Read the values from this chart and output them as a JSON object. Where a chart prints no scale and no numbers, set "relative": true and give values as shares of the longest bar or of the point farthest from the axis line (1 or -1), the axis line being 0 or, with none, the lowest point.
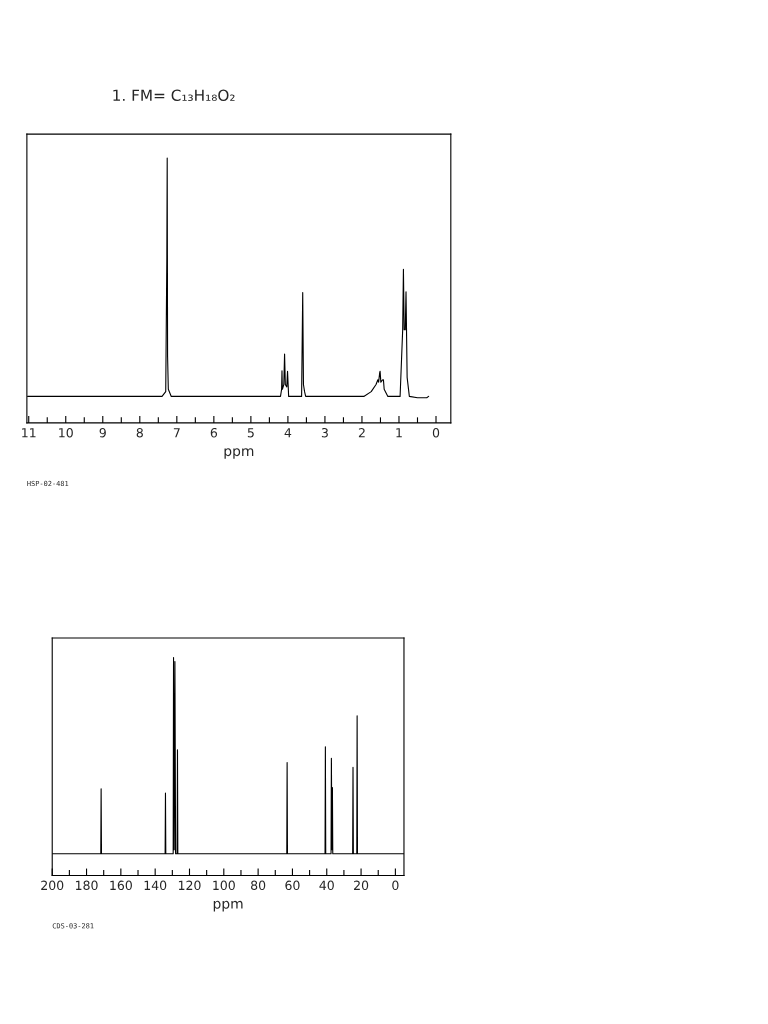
{
  "chart_data": [
    {
      "type": "line",
      "title": "1. FM= C₁₃H₁₈O₂",
      "xlabel": "ppm",
      "annotations": [
        "HSP-02-481"
      ],
      "relative": true,
      "tick_labels": "x",
      "grid": false,
      "legend": false,
      "marker": "none",
      "line_style": "solid",
      "xlim": [
        11.05,
        -0.4
      ],
      "xticks": [
        11,
        {
          "value": 10.5,
          "label": null
        },
        10,
        {
          "value": 9.5,
          "label": null
        },
        9,
        {
          "value": 8.5,
          "label": null
        },
        8,
        {
          "value": 7.5,
          "label": null
        },
        7,
        {
          "value": 6.5,
          "label": null
        },
        6,
        {
          "value": 5.5,
          "label": null
        },
        5,
        {
          "value": 4.5,
          "label": null
        },
        4,
        {
          "value": 3.5,
          "label": null
        },
        3,
        {
          "value": 2.5,
          "label": null
        },
        2,
        {
          "value": 1.5,
          "label": null
        },
        1,
        {
          "value": 0.5,
          "label": null
        },
        0
      ],
      "series": [
        {
          "color": "#000000",
          "x": [
            11.03,
            7.4,
            7.3,
            7.27,
            7.26,
            7.25,
            7.23,
            7.15,
            4.2,
            4.17,
            4.16,
            4.15,
            4.11,
            4.09,
            4.07,
            4.03,
            4.01,
            3.98,
            3.63,
            3.6,
            3.58,
            3.55,
            3.52,
            1.95,
            1.75,
            1.62,
            1.57,
            1.55,
            1.52,
            1.51,
            1.49,
            1.44,
            1.42,
            1.4,
            1.3,
            0.97,
            0.9,
            0.88,
            0.86,
            0.83,
            0.81,
            0.78,
            0.72,
            0.5,
            0.25,
            0.2
          ],
          "values": [
            0.1,
            0.1,
            0.118,
            0.622,
            1.0,
            0.253,
            0.127,
            0.1,
            0.1,
            0.127,
            0.197,
            0.127,
            0.145,
            0.26,
            0.145,
            0.136,
            0.195,
            0.1,
            0.1,
            0.492,
            0.145,
            0.118,
            0.1,
            0.1,
            0.118,
            0.145,
            0.163,
            0.154,
            0.19,
            0.195,
            0.154,
            0.163,
            0.163,
            0.127,
            0.1,
            0.1,
            0.352,
            0.58,
            0.352,
            0.352,
            0.495,
            0.172,
            0.1,
            0.095,
            0.095,
            0.1
          ]
        }
      ]
    },
    {
      "type": "line",
      "xlabel": "ppm",
      "annotations": [
        "CDS-03-281"
      ],
      "relative": true,
      "tick_labels": "x",
      "grid": false,
      "legend": false,
      "marker": "none",
      "line_style": "solid",
      "xlim": [
        200,
        -5
      ],
      "xticks": [
        200,
        {
          "value": 190,
          "label": null
        },
        180,
        {
          "value": 170,
          "label": null
        },
        160,
        {
          "value": 150,
          "label": null
        },
        140,
        {
          "value": 130,
          "label": null
        },
        120,
        {
          "value": 110,
          "label": null
        },
        100,
        {
          "value": 90,
          "label": null
        },
        80,
        {
          "value": 70,
          "label": null
        },
        60,
        {
          "value": 50,
          "label": null
        },
        40,
        {
          "value": 30,
          "label": null
        },
        20,
        {
          "value": 10,
          "label": null
        },
        0
      ],
      "series": [
        {
          "color": "#000000",
          "x": [
            199.9,
            171.7,
            171.5,
            171.3,
            134.2,
            134.0,
            133.8,
            129.5,
            129.3,
            128.9,
            128.5,
            128.1,
            127.2,
            127.0,
            126.8,
            63.3,
            63.1,
            62.9,
            41.0,
            40.8,
            40.6,
            37.5,
            37.3,
            37.0,
            36.7,
            36.5,
            24.9,
            24.7,
            24.5,
            22.5,
            22.3,
            22.1,
            -5
          ],
          "values": [
            0.1,
            0.1,
            0.398,
            0.1,
            0.1,
            0.378,
            0.1,
            0.1,
            1.0,
            0.118,
            0.982,
            0.1,
            0.1,
            0.577,
            0.1,
            0.1,
            0.518,
            0.1,
            0.1,
            0.591,
            0.1,
            0.1,
            0.538,
            0.118,
            0.404,
            0.1,
            0.1,
            0.496,
            0.1,
            0.1,
            0.733,
            0.1,
            0.1
          ]
        }
      ]
    }
  ]
}
